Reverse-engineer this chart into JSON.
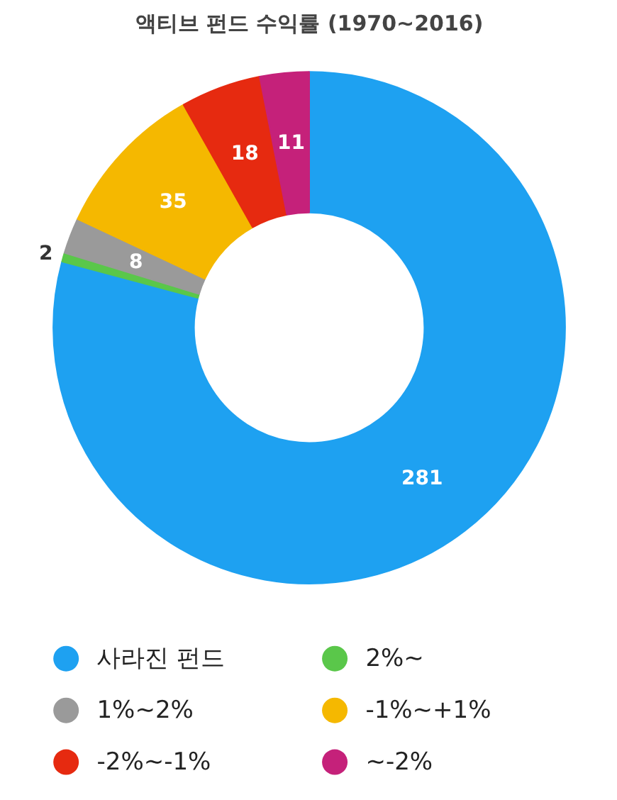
{
  "chart_data": {
    "type": "donut",
    "title": "액티브 펀드 수익률 (1970~2016)",
    "categories": [
      "사라진 펀드",
      "2%~",
      "1%~2%",
      "-1%~+1%",
      "-2%~-1%",
      "~-2%"
    ],
    "values": [
      281,
      2,
      8,
      35,
      18,
      11
    ],
    "colors": [
      "#1ea1f1",
      "#5ac74a",
      "#9a9a9a",
      "#f5b800",
      "#e62a10",
      "#c5217a"
    ],
    "data_labels": true,
    "legend": "bottom"
  }
}
